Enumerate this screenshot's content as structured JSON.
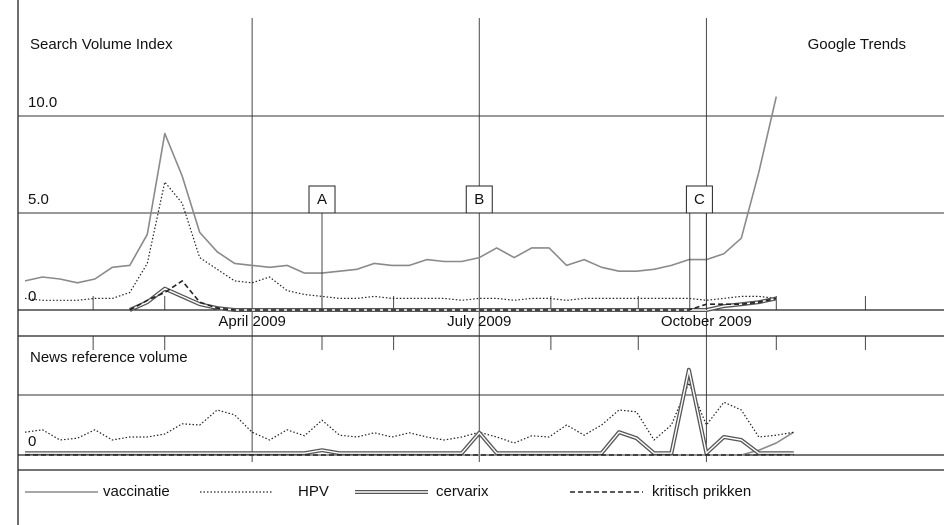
{
  "chart_data": [
    {
      "type": "line",
      "y_label": "Search Volume Index",
      "source": "Google Trends",
      "x": [
        0,
        1,
        2,
        3,
        4,
        5,
        6,
        7,
        8,
        9,
        10,
        11,
        12,
        13,
        14,
        15,
        16,
        17,
        18,
        19,
        20,
        21,
        22,
        23,
        24,
        25,
        26,
        27,
        28,
        29,
        30,
        31,
        32,
        33,
        34,
        35,
        36,
        37,
        38,
        39,
        40,
        41,
        42,
        43
      ],
      "xlim": [
        -0.4,
        52.6
      ],
      "xticks": [
        {
          "value": 13,
          "label": "April 2009"
        },
        {
          "value": 26,
          "label": "July 2009"
        },
        {
          "value": 39,
          "label": "October 2009"
        }
      ],
      "ylim": [
        0,
        15
      ],
      "yticks": [
        0,
        {
          "value": 5,
          "label": "5.0"
        },
        {
          "value": 10,
          "label": "10.0"
        }
      ],
      "grid": true,
      "legend": "bottom",
      "annotations": [
        "A",
        "B",
        "C"
      ],
      "series": [
        {
          "name": "vaccinatie",
          "color": "#8a8a8a",
          "values": [
            1.5,
            1.7,
            1.6,
            1.4,
            1.6,
            2.2,
            2.3,
            3.9,
            9.1,
            6.9,
            4.0,
            3.0,
            2.4,
            2.3,
            2.2,
            2.3,
            1.9,
            1.9,
            2.0,
            2.1,
            2.4,
            2.3,
            2.3,
            2.6,
            2.5,
            2.5,
            2.7,
            3.2,
            2.7,
            3.2,
            3.2,
            2.3,
            2.6,
            2.2,
            2.0,
            2.0,
            2.1,
            2.3,
            2.6,
            2.6,
            2.9,
            3.7,
            7.1,
            11.0
          ]
        },
        {
          "name": "HPV",
          "color": "#222222",
          "values": [
            0.6,
            0.5,
            0.5,
            0.5,
            0.6,
            0.6,
            0.9,
            2.4,
            6.6,
            5.5,
            2.7,
            2.1,
            1.5,
            1.4,
            1.7,
            1.0,
            0.8,
            0.7,
            0.6,
            0.6,
            0.7,
            0.6,
            0.6,
            0.6,
            0.6,
            0.5,
            0.6,
            0.6,
            0.5,
            0.6,
            0.6,
            0.5,
            0.6,
            0.6,
            0.6,
            0.6,
            0.6,
            0.6,
            0.6,
            0.5,
            0.6,
            0.7,
            0.7,
            0.6
          ]
        },
        {
          "name": "cervarix",
          "color": "#555555",
          "values": [
            null,
            null,
            null,
            null,
            null,
            null,
            0,
            0.4,
            1.1,
            0.7,
            0.3,
            0.1,
            0,
            0,
            0,
            0,
            0,
            0,
            0,
            0,
            0,
            0,
            0,
            0,
            0,
            0,
            0,
            0,
            0,
            0,
            0,
            0,
            0,
            0,
            0,
            0,
            0,
            0,
            0,
            0,
            0.2,
            0.3,
            0.4,
            0.6
          ]
        },
        {
          "name": "kritisch prikken",
          "color": "#222222",
          "values": [
            null,
            null,
            null,
            null,
            null,
            null,
            0,
            0.5,
            0.9,
            1.5,
            0.4,
            0.1,
            0,
            0,
            0,
            0,
            0,
            0,
            0,
            0,
            0,
            0,
            0,
            0,
            0,
            0,
            0,
            0,
            0,
            0,
            0,
            0,
            0,
            0,
            0,
            0,
            0,
            0,
            0,
            0.3,
            0.3,
            0.3,
            0.4,
            0.6
          ]
        }
      ]
    },
    {
      "type": "line",
      "y_label": "News reference volume",
      "x": [
        0,
        1,
        2,
        3,
        4,
        5,
        6,
        7,
        8,
        9,
        10,
        11,
        12,
        13,
        14,
        15,
        16,
        17,
        18,
        19,
        20,
        21,
        22,
        23,
        24,
        25,
        26,
        27,
        28,
        29,
        30,
        31,
        32,
        33,
        34,
        35,
        36,
        37,
        38,
        39,
        40,
        41,
        42,
        43,
        44
      ],
      "xlim": [
        -0.4,
        52.6
      ],
      "ylim": [
        0,
        2
      ],
      "yticks": [
        0
      ],
      "series": [
        {
          "name": "vaccinatie",
          "color": "#8a8a8a",
          "values": [
            0,
            0,
            0,
            0,
            0,
            0,
            0,
            0,
            0,
            0,
            0,
            0,
            0,
            0,
            0,
            0,
            0,
            0,
            0,
            0,
            0,
            0,
            0,
            0,
            0,
            0,
            0,
            0,
            0,
            0,
            0,
            0,
            0,
            0,
            0,
            0,
            0,
            0,
            0,
            0,
            0,
            0,
            0.08,
            0.2,
            0.38
          ]
        },
        {
          "name": "HPV",
          "color": "#222222",
          "values": [
            0.38,
            0.42,
            0.25,
            0.28,
            0.42,
            0.25,
            0.3,
            0.3,
            0.35,
            0.52,
            0.5,
            0.75,
            0.67,
            0.38,
            0.25,
            0.42,
            0.32,
            0.58,
            0.33,
            0.3,
            0.37,
            0.3,
            0.37,
            0.3,
            0.25,
            0.3,
            0.38,
            0.3,
            0.2,
            0.32,
            0.3,
            0.5,
            0.33,
            0.5,
            0.75,
            0.72,
            0.25,
            0.5,
            1.2,
            0.5,
            0.88,
            0.75,
            0.3,
            0.33,
            0.38
          ]
        },
        {
          "name": "cervarix",
          "color": "#555555",
          "values": [
            0.03,
            0.03,
            0.03,
            0.03,
            0.03,
            0.03,
            0.03,
            0.03,
            0.03,
            0.03,
            0.03,
            0.03,
            0.03,
            0.03,
            0.03,
            0.03,
            0.03,
            0.08,
            0.03,
            0.03,
            0.03,
            0.03,
            0.03,
            0.03,
            0.03,
            0.03,
            0.37,
            0.03,
            0.03,
            0.03,
            0.03,
            0.03,
            0.03,
            0.03,
            0.38,
            0.28,
            0.03,
            0.03,
            1.42,
            0.03,
            0.3,
            0.25,
            0.03,
            0.03,
            0.03
          ]
        },
        {
          "name": "kritisch prikken",
          "color": "#222222",
          "values": [
            0,
            0,
            0,
            0,
            0,
            0,
            0,
            0,
            0,
            0,
            0,
            0,
            0,
            0,
            0,
            0,
            0,
            0,
            0,
            0,
            0,
            0,
            0,
            0,
            0,
            0,
            0,
            0,
            0,
            0,
            0,
            0,
            0,
            0,
            0,
            0,
            0,
            0,
            0,
            0,
            0,
            0,
            0,
            0,
            0
          ]
        }
      ]
    }
  ]
}
